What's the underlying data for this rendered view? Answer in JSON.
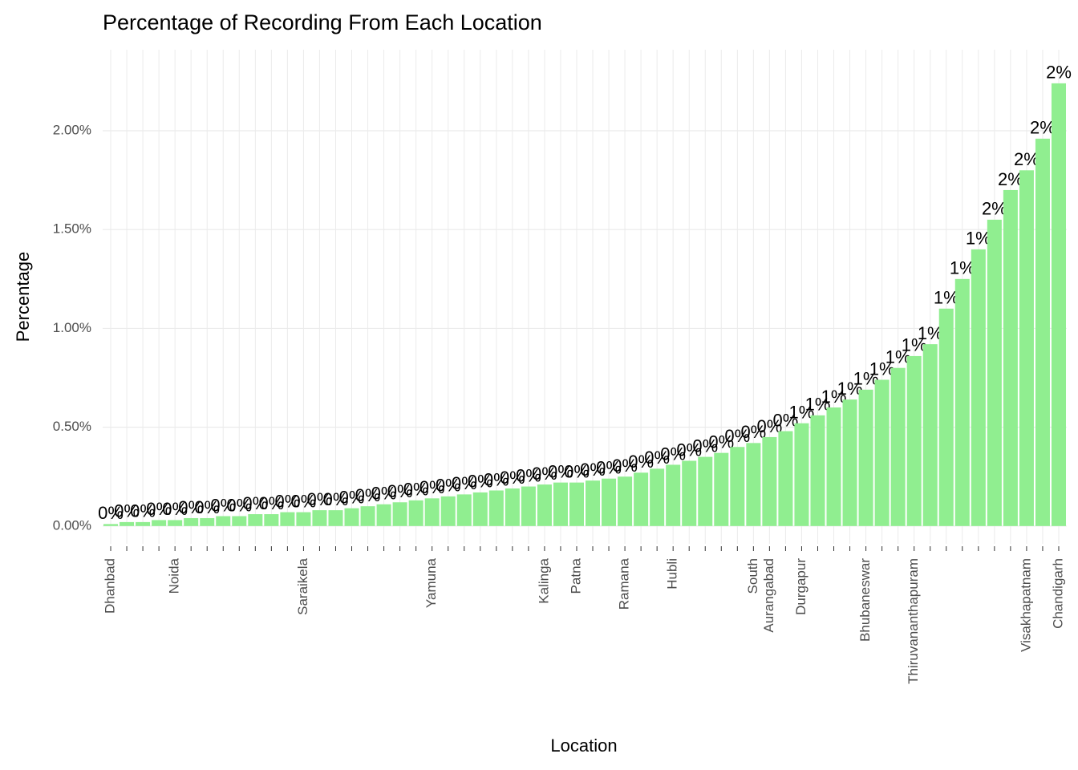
{
  "chart_data": {
    "type": "bar",
    "title": "Percentage of Recording From Each Location",
    "x_label": "Location",
    "y_label": "Percentage",
    "color": "#90ee90",
    "grid": true,
    "categories": [
      "Dhanbad",
      null,
      null,
      null,
      "Noida",
      null,
      null,
      null,
      null,
      null,
      null,
      null,
      "Saraikela",
      null,
      null,
      null,
      null,
      null,
      null,
      null,
      "Yamuna",
      null,
      null,
      null,
      null,
      null,
      null,
      "Kalinga",
      null,
      "Patna",
      null,
      null,
      "Ramana",
      null,
      null,
      "Hubli",
      null,
      null,
      null,
      null,
      "South",
      "Aurangabad",
      null,
      "Durgapur",
      null,
      null,
      null,
      "Bhubaneswar",
      null,
      null,
      "Thiruvananthapuram",
      null,
      null,
      null,
      null,
      null,
      null,
      "Visakhapatnam",
      null,
      "Chandigarh"
    ],
    "values": [
      0.01,
      0.02,
      0.02,
      0.03,
      0.03,
      0.04,
      0.04,
      0.05,
      0.05,
      0.06,
      0.06,
      0.07,
      0.07,
      0.08,
      0.08,
      0.09,
      0.1,
      0.11,
      0.12,
      0.13,
      0.14,
      0.15,
      0.16,
      0.17,
      0.18,
      0.19,
      0.2,
      0.21,
      0.22,
      0.22,
      0.23,
      0.24,
      0.25,
      0.27,
      0.29,
      0.31,
      0.33,
      0.35,
      0.37,
      0.4,
      0.42,
      0.45,
      0.48,
      0.52,
      0.56,
      0.6,
      0.64,
      0.69,
      0.74,
      0.8,
      0.86,
      0.92,
      1.1,
      1.25,
      1.4,
      1.55,
      1.7,
      1.8,
      1.96,
      2.24
    ],
    "value_labels": [
      "0%",
      "0%",
      "0%",
      "0%",
      "0%",
      "0%",
      "0%",
      "0%",
      "0%",
      "0%",
      "0%",
      "0%",
      "0%",
      "0%",
      "0%",
      "0%",
      "0%",
      "0%",
      "0%",
      "0%",
      "0%",
      "0%",
      "0%",
      "0%",
      "0%",
      "0%",
      "0%",
      "0%",
      "0%",
      "0%",
      "0%",
      "0%",
      "0%",
      "0%",
      "0%",
      "0%",
      "0%",
      "0%",
      "0%",
      "0%",
      "0%",
      "0%",
      "0%",
      "1%",
      "1%",
      "1%",
      "1%",
      "1%",
      "1%",
      "1%",
      "1%",
      "1%",
      "1%",
      "1%",
      "1%",
      "2%",
      "2%",
      "2%",
      "2%",
      "2%"
    ],
    "ylim": [
      -0.09,
      2.41
    ],
    "yticks": [
      {
        "value": 0,
        "label": "0.00%"
      },
      {
        "value": 0.5,
        "label": "0.50%"
      },
      {
        "value": 1,
        "label": "1.00%"
      },
      {
        "value": 1.5,
        "label": "1.50%"
      },
      {
        "value": 2,
        "label": "2.00%"
      }
    ]
  }
}
